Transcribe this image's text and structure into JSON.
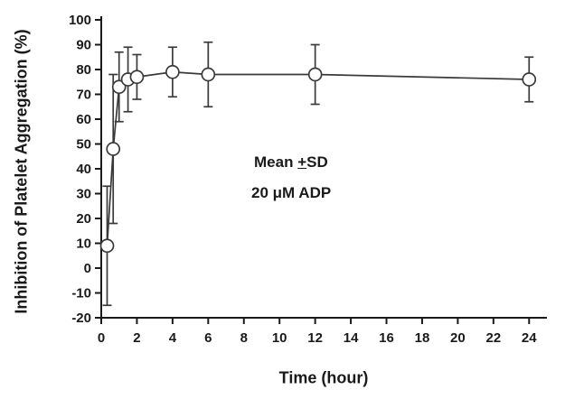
{
  "chart_data": {
    "type": "line",
    "title": "",
    "xlabel": "Time (hour)",
    "ylabel": "Inhibition of Platelet Aggregation (%)",
    "xlim": [
      0,
      25
    ],
    "ylim": [
      -20,
      100
    ],
    "xticks": [
      0,
      2,
      4,
      6,
      8,
      10,
      12,
      14,
      16,
      18,
      20,
      22,
      24
    ],
    "yticks": [
      -20,
      -10,
      0,
      10,
      20,
      30,
      40,
      50,
      60,
      70,
      80,
      90,
      100
    ],
    "grid": false,
    "legend": "none",
    "marker": "open-circle",
    "line_color": "#3a3a3a",
    "axis_color": "#1a1a1a",
    "error_bars": "mean-plus-minus-sd",
    "series": [
      {
        "name": "Inhibition of platelet aggregation (%)",
        "x": [
          0.33,
          0.67,
          1,
          1.5,
          2,
          4,
          6,
          12,
          24
        ],
        "y": [
          9,
          48,
          73,
          76,
          77,
          79,
          78,
          78,
          76
        ],
        "yerr": [
          24,
          30,
          14,
          13,
          9,
          10,
          13,
          12,
          9
        ]
      }
    ],
    "annotations": [
      {
        "pre": "Mean ",
        "plus_minus": "+",
        "post": "SD"
      },
      {
        "text": "20 μM ADP"
      }
    ]
  }
}
